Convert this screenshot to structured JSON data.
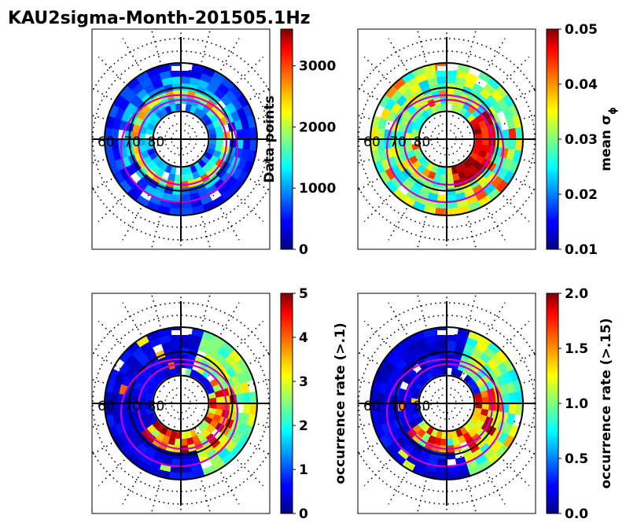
{
  "chart_data": {
    "title": "KAU2sigma-Month-201505.1Hz",
    "type": "polar-heatmap",
    "colormap": "jet",
    "latitude_circles": [
      60,
      70,
      80
    ],
    "panels": [
      {
        "id": "data-points",
        "colorbar": {
          "label": "Data points",
          "min": 0,
          "max": 3600,
          "ticks": [
            0,
            1000,
            2000,
            3000
          ],
          "tick_labels": [
            "0",
            "1000",
            "2000",
            "3000"
          ]
        },
        "pattern": "ring"
      },
      {
        "id": "mean-sigma",
        "colorbar": {
          "label": "mean σ",
          "label_sub": "ϕ",
          "min": 0.01,
          "max": 0.05,
          "ticks": [
            0.01,
            0.02,
            0.03,
            0.04,
            0.05
          ],
          "tick_labels": [
            "0.01",
            "0.02",
            "0.03",
            "0.04",
            "0.05"
          ]
        },
        "pattern": "mixed"
      },
      {
        "id": "occurrence-1",
        "colorbar": {
          "label": "occurrence rate (>.1)",
          "min": 0,
          "max": 5,
          "ticks": [
            0,
            1,
            2,
            3,
            4,
            5
          ],
          "tick_labels": [
            "0",
            "1",
            "2",
            "3",
            "4",
            "5"
          ]
        },
        "pattern": "low-hot"
      },
      {
        "id": "occurrence-15",
        "colorbar": {
          "label": "occurrence rate (>.15)",
          "min": 0,
          "max": 2,
          "ticks": [
            0,
            0.5,
            1,
            1.5,
            2
          ],
          "tick_labels": [
            "0.0",
            "0.5",
            "1.0",
            "1.5",
            "2.0"
          ]
        },
        "pattern": "low-hot"
      }
    ]
  }
}
